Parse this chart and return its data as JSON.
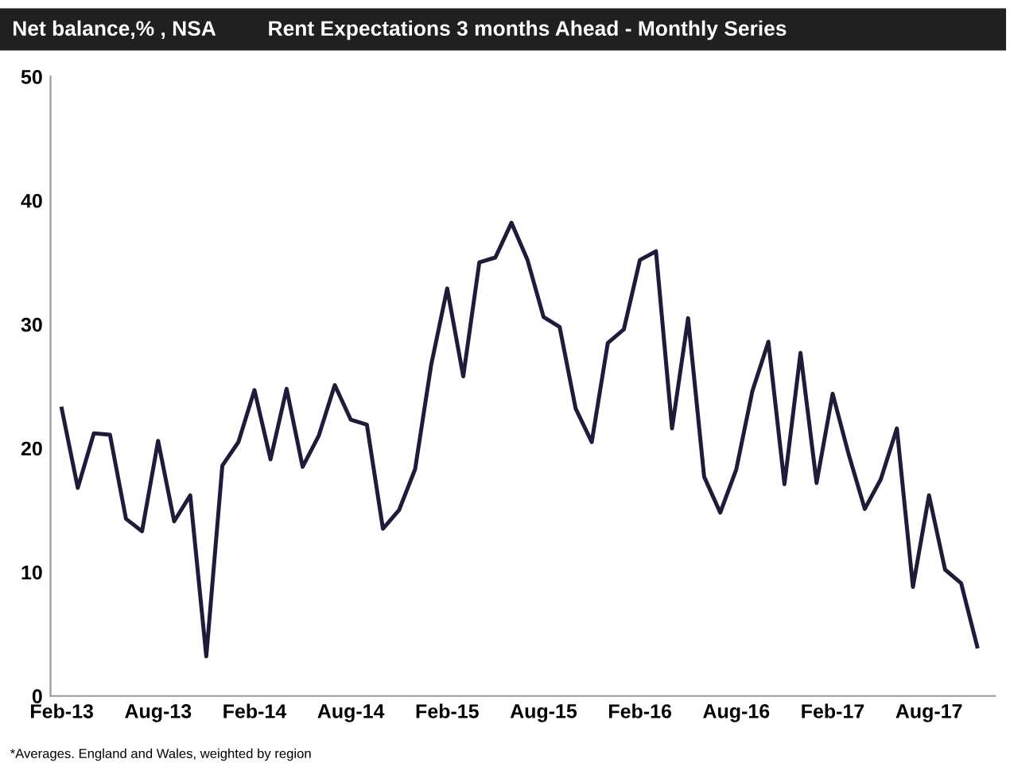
{
  "chart_data": {
    "type": "line",
    "title": "Rent Expectations 3 months Ahead - Monthly Series",
    "ylabel": "Net balance,% , NSA",
    "categories": [
      "Feb-13",
      null,
      null,
      null,
      null,
      null,
      "Aug-13",
      null,
      null,
      null,
      null,
      null,
      "Feb-14",
      null,
      null,
      null,
      null,
      null,
      "Aug-14",
      null,
      null,
      null,
      null,
      null,
      "Feb-15",
      null,
      null,
      null,
      null,
      null,
      "Aug-15",
      null,
      null,
      null,
      null,
      null,
      "Feb-16",
      null,
      null,
      null,
      null,
      null,
      "Aug-16",
      null,
      null,
      null,
      null,
      null,
      "Feb-17",
      null,
      null,
      null,
      null,
      null,
      "Aug-17",
      null,
      null,
      null
    ],
    "series": [
      {
        "color": "#1f1b3a",
        "values": [
          23.2,
          16.8,
          21.2,
          21.1,
          14.3,
          13.3,
          20.6,
          14.1,
          16.2,
          3.2,
          18.6,
          20.5,
          24.7,
          19.1,
          24.8,
          18.5,
          21.0,
          25.1,
          22.3,
          21.9,
          13.5,
          15.0,
          18.3,
          26.7,
          32.9,
          25.8,
          35.0,
          35.4,
          38.2,
          35.2,
          30.6,
          29.8,
          23.2,
          20.5,
          28.5,
          29.6,
          35.2,
          35.9,
          21.6,
          30.5,
          17.7,
          14.8,
          18.3,
          24.6,
          28.6,
          17.1,
          27.7,
          17.2,
          24.4,
          19.5,
          15.1,
          17.5,
          21.6,
          8.8,
          16.2,
          10.2,
          9.1,
          4.0
        ]
      }
    ],
    "ylim": [
      0,
      50
    ],
    "yticks": [
      0,
      10,
      20,
      30,
      40,
      50
    ],
    "grid": false,
    "legend": false,
    "marker": "none",
    "line_style": "solid",
    "annotations": [
      "*Averages. England and Wales, weighted by region"
    ]
  }
}
